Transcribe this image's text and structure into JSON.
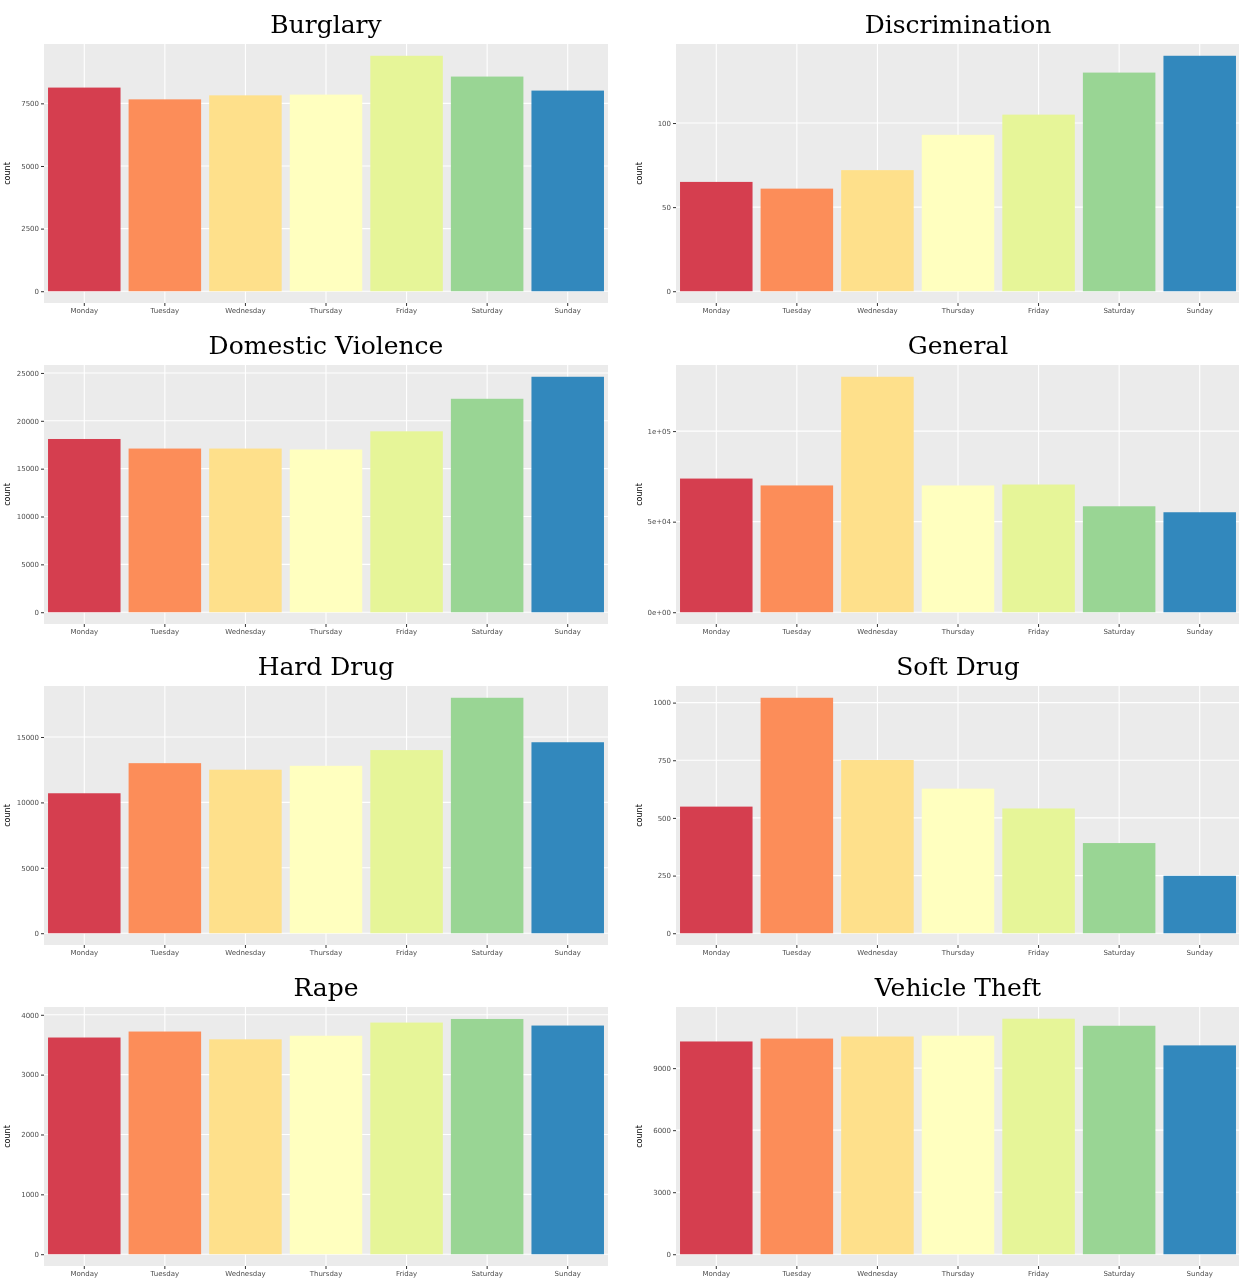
{
  "chart_data": [
    {
      "type": "bar",
      "title": "Burglary",
      "ylabel": "count",
      "categories": [
        "Monday",
        "Tuesday",
        "Wednesday",
        "Thursday",
        "Friday",
        "Saturday",
        "Sunday"
      ],
      "values": [
        8130,
        7660,
        7820,
        7850,
        9400,
        8570,
        8010
      ],
      "colors": [
        "#d53e4f",
        "#fc8d59",
        "#fee08b",
        "#ffffbf",
        "#e6f598",
        "#99d594",
        "#3288bd"
      ],
      "ylim": [
        -470,
        9870
      ],
      "yticks": [
        0,
        2500,
        5000,
        7500
      ],
      "grid": true
    },
    {
      "type": "bar",
      "title": "Discrimination",
      "ylabel": "count",
      "categories": [
        "Monday",
        "Tuesday",
        "Wednesday",
        "Thursday",
        "Friday",
        "Saturday",
        "Sunday"
      ],
      "values": [
        65,
        61,
        72,
        93,
        105,
        130,
        140
      ],
      "colors": [
        "#d53e4f",
        "#fc8d59",
        "#fee08b",
        "#ffffbf",
        "#e6f598",
        "#99d594",
        "#3288bd"
      ],
      "ylim": [
        -7,
        147
      ],
      "yticks": [
        0,
        50,
        100
      ],
      "grid": true
    },
    {
      "type": "bar",
      "title": "Domestic Violence",
      "ylabel": "count",
      "categories": [
        "Monday",
        "Tuesday",
        "Wednesday",
        "Thursday",
        "Friday",
        "Saturday",
        "Sunday"
      ],
      "values": [
        18100,
        17100,
        17100,
        17000,
        18900,
        22300,
        24600
      ],
      "colors": [
        "#d53e4f",
        "#fc8d59",
        "#fee08b",
        "#ffffbf",
        "#e6f598",
        "#99d594",
        "#3288bd"
      ],
      "ylim": [
        -1230,
        25830
      ],
      "yticks": [
        0,
        5000,
        10000,
        15000,
        20000,
        25000
      ],
      "grid": true
    },
    {
      "type": "bar",
      "title": "General",
      "ylabel": "count",
      "categories": [
        "Monday",
        "Tuesday",
        "Wednesday",
        "Thursday",
        "Friday",
        "Saturday",
        "Sunday"
      ],
      "values": [
        73800,
        70000,
        130000,
        70000,
        70500,
        58500,
        55200
      ],
      "colors": [
        "#d53e4f",
        "#fc8d59",
        "#fee08b",
        "#ffffbf",
        "#e6f598",
        "#99d594",
        "#3288bd"
      ],
      "ylim": [
        -6500,
        136500
      ],
      "yticks": [
        {
          "value": 0,
          "label": "0e+00"
        },
        {
          "value": 50000,
          "label": "5e+04"
        },
        {
          "value": 100000,
          "label": "1e+05"
        }
      ],
      "grid": true
    },
    {
      "type": "bar",
      "title": "Hard Drug",
      "ylabel": "count",
      "categories": [
        "Monday",
        "Tuesday",
        "Wednesday",
        "Thursday",
        "Friday",
        "Saturday",
        "Sunday"
      ],
      "values": [
        10700,
        13000,
        12500,
        12800,
        14000,
        18000,
        14600
      ],
      "colors": [
        "#d53e4f",
        "#fc8d59",
        "#fee08b",
        "#ffffbf",
        "#e6f598",
        "#99d594",
        "#3288bd"
      ],
      "ylim": [
        -900,
        18900
      ],
      "yticks": [
        0,
        5000,
        10000,
        15000
      ],
      "grid": true
    },
    {
      "type": "bar",
      "title": "Soft Drug",
      "ylabel": "count",
      "categories": [
        "Monday",
        "Tuesday",
        "Wednesday",
        "Thursday",
        "Friday",
        "Saturday",
        "Sunday"
      ],
      "values": [
        549,
        1021,
        751,
        627,
        541,
        391,
        249
      ],
      "colors": [
        "#d53e4f",
        "#fc8d59",
        "#fee08b",
        "#ffffbf",
        "#e6f598",
        "#99d594",
        "#3288bd"
      ],
      "ylim": [
        -51,
        1072
      ],
      "yticks": [
        0,
        250,
        500,
        750,
        1000
      ],
      "grid": true
    },
    {
      "type": "bar",
      "title": "Rape",
      "ylabel": "count",
      "categories": [
        "Monday",
        "Tuesday",
        "Wednesday",
        "Thursday",
        "Friday",
        "Saturday",
        "Sunday"
      ],
      "values": [
        3620,
        3720,
        3590,
        3650,
        3870,
        3930,
        3820
      ],
      "colors": [
        "#d53e4f",
        "#fc8d59",
        "#fee08b",
        "#ffffbf",
        "#e6f598",
        "#99d594",
        "#3288bd"
      ],
      "ylim": [
        -197,
        4130
      ],
      "yticks": [
        0,
        1000,
        2000,
        3000,
        4000
      ],
      "grid": true
    },
    {
      "type": "bar",
      "title": "Vehicle Theft",
      "ylabel": "count",
      "categories": [
        "Monday",
        "Tuesday",
        "Wednesday",
        "Thursday",
        "Friday",
        "Saturday",
        "Sunday"
      ],
      "values": [
        10290,
        10430,
        10530,
        10570,
        11390,
        11050,
        10100
      ],
      "colors": [
        "#d53e4f",
        "#fc8d59",
        "#fee08b",
        "#ffffbf",
        "#e6f598",
        "#99d594",
        "#3288bd"
      ],
      "ylim": [
        -569,
        11957
      ],
      "yticks": [
        0,
        3000,
        6000,
        9000
      ],
      "grid": true
    }
  ]
}
